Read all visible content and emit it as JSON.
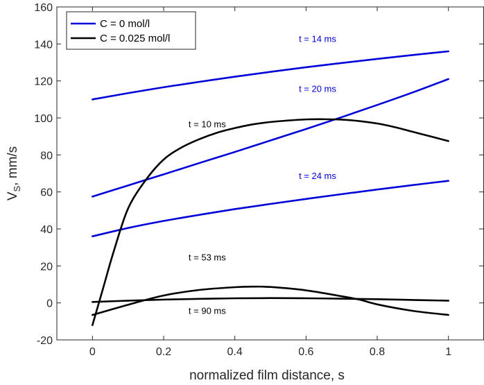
{
  "chart_data": {
    "type": "line",
    "title": "",
    "xlabel": "normalized film distance, s",
    "ylabel_main": "V",
    "ylabel_sub": "S",
    "ylabel_rest": ", mm/s",
    "xlim": [
      -0.1,
      1.1
    ],
    "ylim": [
      -20,
      160
    ],
    "xticks": [
      0,
      0.2,
      0.4,
      0.6,
      0.8,
      1
    ],
    "xtick_labels": [
      "0",
      "0.2",
      "0.4",
      "0.6",
      "0.8",
      "1"
    ],
    "yticks": [
      -20,
      0,
      20,
      40,
      60,
      80,
      100,
      120,
      140,
      160
    ],
    "ytick_labels": [
      "-20",
      "0",
      "20",
      "40",
      "60",
      "80",
      "100",
      "120",
      "140",
      "160"
    ],
    "grid": false,
    "legend": {
      "placement": "top-left",
      "entries": [
        {
          "label": "C = 0 mol/l",
          "color": "#0000d9"
        },
        {
          "label": "C = 0.025 mol/l",
          "color": "#000000"
        }
      ]
    },
    "series": [
      {
        "name": "t = 14 ms",
        "group": "C = 0 mol/l",
        "color": "#0000d9",
        "x": [
          0,
          0.1,
          0.2,
          0.3,
          0.4,
          0.5,
          0.6,
          0.7,
          0.8,
          0.9,
          1.0
        ],
        "y": [
          110,
          113.4,
          116.6,
          119.5,
          122.3,
          124.9,
          127.4,
          129.7,
          131.9,
          134.0,
          136
        ]
      },
      {
        "name": "t = 20 ms",
        "group": "C = 0 mol/l",
        "color": "#0000d9",
        "x": [
          0,
          0.1,
          0.2,
          0.3,
          0.4,
          0.5,
          0.6,
          0.7,
          0.8,
          0.9,
          1.0
        ],
        "y": [
          57.5,
          63.5,
          69.5,
          75.6,
          81.6,
          87.8,
          94.0,
          100.4,
          107.0,
          113.8,
          121
        ]
      },
      {
        "name": "t = 24 ms",
        "group": "C = 0 mol/l",
        "color": "#0000d9",
        "x": [
          0,
          0.1,
          0.2,
          0.3,
          0.4,
          0.5,
          0.6,
          0.7,
          0.8,
          0.9,
          1.0
        ],
        "y": [
          36,
          40.5,
          44.3,
          47.6,
          50.7,
          53.5,
          56.2,
          58.8,
          61.3,
          63.7,
          66
        ]
      },
      {
        "name": "t = 10 ms",
        "group": "C = 0.025 mol/l",
        "color": "#000000",
        "x": [
          0,
          0.03,
          0.06,
          0.1,
          0.15,
          0.2,
          0.25,
          0.3,
          0.35,
          0.4,
          0.45,
          0.5,
          0.55,
          0.6,
          0.65,
          0.7,
          0.75,
          0.8,
          0.85,
          0.9,
          0.95,
          1.0
        ],
        "y": [
          -12,
          8,
          28,
          51,
          66.5,
          77.5,
          84,
          88.5,
          92,
          94.5,
          96.5,
          97.8,
          98.6,
          99.2,
          99.3,
          99.1,
          98.3,
          97,
          95,
          92.5,
          90,
          87.5
        ]
      },
      {
        "name": "t = 53 ms",
        "group": "C = 0.025 mol/l",
        "color": "#000000",
        "x": [
          0,
          0.1,
          0.2,
          0.3,
          0.4,
          0.45,
          0.5,
          0.6,
          0.7,
          0.75,
          0.8,
          0.9,
          1.0
        ],
        "y": [
          -6.5,
          -1,
          4,
          7,
          8.5,
          8.8,
          8.6,
          6.8,
          3.6,
          1.8,
          -0.8,
          -4.3,
          -6.5
        ]
      },
      {
        "name": "t = 90 ms",
        "group": "C = 0.025 mol/l",
        "color": "#000000",
        "x": [
          0,
          0.1,
          0.2,
          0.3,
          0.4,
          0.5,
          0.6,
          0.7,
          0.8,
          0.9,
          1.0
        ],
        "y": [
          0.5,
          1.2,
          1.8,
          2.2,
          2.5,
          2.6,
          2.5,
          2.3,
          2.0,
          1.6,
          1.2
        ]
      }
    ],
    "annotations": [
      {
        "text": "t = 14 ms",
        "x": 0.58,
        "y": 141,
        "color": "#0000d9"
      },
      {
        "text": "t = 20 ms",
        "x": 0.58,
        "y": 114,
        "color": "#0000d9"
      },
      {
        "text": "t = 24 ms",
        "x": 0.58,
        "y": 67,
        "color": "#0000d9"
      },
      {
        "text": "t = 10 ms",
        "x": 0.27,
        "y": 95,
        "color": "#000000"
      },
      {
        "text": "t = 53 ms",
        "x": 0.27,
        "y": 23,
        "color": "#000000"
      },
      {
        "text": "t = 90 ms",
        "x": 0.27,
        "y": -6,
        "color": "#000000"
      }
    ]
  }
}
